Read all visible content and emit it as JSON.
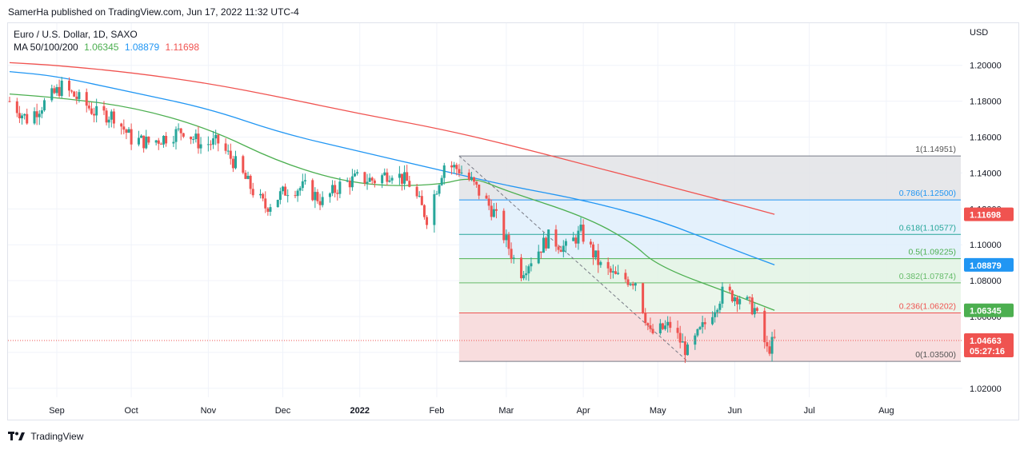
{
  "header": {
    "publisher_line": "SamerHa published on TradingView.com, Jun 17, 2022 11:32 UTC-4"
  },
  "legend": {
    "symbol_line": "Euro / U.S. Dollar, 1D, SAXO",
    "ma_label": "MA 50/100/200",
    "ma50_value": "1.06345",
    "ma100_value": "1.08879",
    "ma200_value": "1.11698"
  },
  "footer": {
    "brand": "TradingView"
  },
  "colors": {
    "up": "#26a69a",
    "down": "#ef5350",
    "ma50": "#4caf50",
    "ma100": "#2196f3",
    "ma200": "#f05350"
  },
  "chart_data": {
    "type": "candlestick",
    "title": "Euro / U.S. Dollar, 1D, SAXO",
    "currency_label": "USD",
    "y_range": [
      1.015,
      1.2235
    ],
    "y_ticks": [
      "1.20000",
      "1.18000",
      "1.16000",
      "1.14000",
      "1.12000",
      "1.10000",
      "1.08000",
      "1.06000",
      "1.04000",
      "1.02000"
    ],
    "y_tick_values": [
      1.2,
      1.18,
      1.16,
      1.14,
      1.12,
      1.1,
      1.08,
      1.06,
      1.04,
      1.02
    ],
    "x_range": [
      "2021-08-13",
      "2022-08-31"
    ],
    "x_ticks": [
      {
        "label": "Sep",
        "date": "2021-09-01",
        "bold": false
      },
      {
        "label": "Oct",
        "date": "2021-10-01",
        "bold": false
      },
      {
        "label": "Nov",
        "date": "2021-11-01",
        "bold": false
      },
      {
        "label": "Dec",
        "date": "2021-12-01",
        "bold": false
      },
      {
        "label": "2022",
        "date": "2022-01-01",
        "bold": true
      },
      {
        "label": "Feb",
        "date": "2022-02-01",
        "bold": false
      },
      {
        "label": "Mar",
        "date": "2022-03-01",
        "bold": false
      },
      {
        "label": "Apr",
        "date": "2022-04-01",
        "bold": false
      },
      {
        "label": "May",
        "date": "2022-05-01",
        "bold": false
      },
      {
        "label": "Jun",
        "date": "2022-06-01",
        "bold": false
      },
      {
        "label": "Jul",
        "date": "2022-07-01",
        "bold": false
      },
      {
        "label": "Aug",
        "date": "2022-08-01",
        "bold": false
      }
    ],
    "close_path": [
      [
        "2021-08-13",
        1.18
      ],
      [
        "2021-08-20",
        1.17
      ],
      [
        "2021-08-27",
        1.179
      ],
      [
        "2021-09-03",
        1.188
      ],
      [
        "2021-09-10",
        1.181
      ],
      [
        "2021-09-17",
        1.173
      ],
      [
        "2021-09-24",
        1.172
      ],
      [
        "2021-10-01",
        1.159
      ],
      [
        "2021-10-08",
        1.157
      ],
      [
        "2021-10-15",
        1.16
      ],
      [
        "2021-10-22",
        1.164
      ],
      [
        "2021-10-29",
        1.156
      ],
      [
        "2021-11-05",
        1.157
      ],
      [
        "2021-11-12",
        1.145
      ],
      [
        "2021-11-19",
        1.13
      ],
      [
        "2021-11-24",
        1.121
      ],
      [
        "2021-12-03",
        1.131
      ],
      [
        "2021-12-10",
        1.132
      ],
      [
        "2021-12-17",
        1.124
      ],
      [
        "2021-12-24",
        1.133
      ],
      [
        "2021-12-31",
        1.137
      ],
      [
        "2022-01-07",
        1.136
      ],
      [
        "2022-01-14",
        1.141
      ],
      [
        "2022-01-21",
        1.134
      ],
      [
        "2022-01-28",
        1.115
      ],
      [
        "2022-02-04",
        1.145
      ],
      [
        "2022-02-10",
        1.142
      ],
      [
        "2022-02-15",
        1.135
      ],
      [
        "2022-02-24",
        1.118
      ],
      [
        "2022-03-04",
        1.092
      ],
      [
        "2022-03-07",
        1.085
      ],
      [
        "2022-03-11",
        1.092
      ],
      [
        "2022-03-18",
        1.104
      ],
      [
        "2022-03-25",
        1.098
      ],
      [
        "2022-03-31",
        1.107
      ],
      [
        "2022-04-08",
        1.088
      ],
      [
        "2022-04-14",
        1.082
      ],
      [
        "2022-04-22",
        1.08
      ],
      [
        "2022-04-28",
        1.05
      ],
      [
        "2022-05-06",
        1.055
      ],
      [
        "2022-05-13",
        1.04
      ],
      [
        "2022-05-20",
        1.056
      ],
      [
        "2022-05-27",
        1.073
      ],
      [
        "2022-06-03",
        1.071
      ],
      [
        "2022-06-09",
        1.064
      ],
      [
        "2022-06-14",
        1.041
      ],
      [
        "2022-06-17",
        1.0466
      ]
    ],
    "moving_averages": [
      {
        "name": "MA 50",
        "value_label": "1.06345",
        "color": "#4caf50",
        "points": [
          [
            "2021-08-13",
            1.184
          ],
          [
            "2021-09-01",
            1.182
          ],
          [
            "2021-10-01",
            1.177
          ],
          [
            "2021-11-01",
            1.165
          ],
          [
            "2021-12-01",
            1.145
          ],
          [
            "2022-01-01",
            1.133
          ],
          [
            "2022-02-01",
            1.133
          ],
          [
            "2022-02-15",
            1.138
          ],
          [
            "2022-03-01",
            1.13
          ],
          [
            "2022-04-01",
            1.116
          ],
          [
            "2022-04-20",
            1.102
          ],
          [
            "2022-05-01",
            1.088
          ],
          [
            "2022-06-01",
            1.072
          ],
          [
            "2022-06-17",
            1.06345
          ]
        ]
      },
      {
        "name": "MA 100",
        "value_label": "1.08879",
        "color": "#2196f3",
        "points": [
          [
            "2021-08-13",
            1.1965
          ],
          [
            "2021-09-01",
            1.194
          ],
          [
            "2021-10-01",
            1.185
          ],
          [
            "2021-11-01",
            1.176
          ],
          [
            "2021-12-01",
            1.162
          ],
          [
            "2022-01-01",
            1.152
          ],
          [
            "2022-02-01",
            1.142
          ],
          [
            "2022-03-01",
            1.133
          ],
          [
            "2022-04-01",
            1.125
          ],
          [
            "2022-05-01",
            1.114
          ],
          [
            "2022-06-01",
            1.097
          ],
          [
            "2022-06-17",
            1.08879
          ]
        ]
      },
      {
        "name": "MA 200",
        "value_label": "1.11698",
        "color": "#f05350",
        "points": [
          [
            "2021-08-13",
            1.2015
          ],
          [
            "2021-09-01",
            1.2
          ],
          [
            "2021-10-01",
            1.196
          ],
          [
            "2021-11-01",
            1.19
          ],
          [
            "2021-12-01",
            1.182
          ],
          [
            "2022-01-01",
            1.173
          ],
          [
            "2022-02-01",
            1.165
          ],
          [
            "2022-03-01",
            1.156
          ],
          [
            "2022-04-01",
            1.145
          ],
          [
            "2022-05-01",
            1.134
          ],
          [
            "2022-06-01",
            1.123
          ],
          [
            "2022-06-17",
            1.11698
          ]
        ]
      }
    ],
    "fibonacci": {
      "start_date": "2022-02-10",
      "end_date": "2022-08-31",
      "trend_from": [
        "2022-02-10",
        1.14951
      ],
      "trend_to": [
        "2022-05-13",
        1.035
      ],
      "levels": [
        {
          "ratio": 1,
          "label": "1(1.14951)",
          "price": 1.14951,
          "line": "#787b86",
          "fill": "#e2e3e6"
        },
        {
          "ratio": 0.786,
          "label": "0.786(1.12500)",
          "price": 1.125,
          "line": "#2196f3",
          "fill": "#dfeefb"
        },
        {
          "ratio": 0.618,
          "label": "0.618(1.10577)",
          "price": 1.10577,
          "line": "#26a69a",
          "fill": "#dfeefb"
        },
        {
          "ratio": 0.5,
          "label": "0.5(1.09225)",
          "price": 1.09225,
          "line": "#4caf50",
          "fill": "#e2f3e4"
        },
        {
          "ratio": 0.382,
          "label": "0.382(1.07874)",
          "price": 1.07874,
          "line": "#66bb6a",
          "fill": "#e7f4e8"
        },
        {
          "ratio": 0.236,
          "label": "0.236(1.06202)",
          "price": 1.06202,
          "line": "#ef5350",
          "fill": "#e7f4e8"
        },
        {
          "ratio": 0,
          "label": "0(1.03500)",
          "price": 1.035,
          "line": "#787b86",
          "fill": "#fadadd"
        }
      ]
    },
    "price_tags": [
      {
        "label": "1.11698",
        "price": 1.11698,
        "color": "#f05350"
      },
      {
        "label": "1.08879",
        "price": 1.08879,
        "color": "#2196f3"
      },
      {
        "label": "1.06345",
        "price": 1.06345,
        "color": "#4caf50"
      },
      {
        "label": "1.04663",
        "price": 1.04663,
        "color": "#ef5350",
        "countdown": "05:27:16"
      }
    ],
    "last_price": 1.04663,
    "countdown": "05:27:16"
  }
}
